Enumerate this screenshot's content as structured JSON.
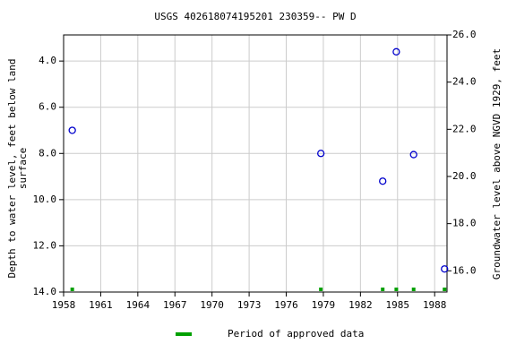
{
  "chart_data": {
    "type": "scatter",
    "title": "USGS 402618074195201 230359-- PW D",
    "ylabel": [
      "Depth to water level, feet below land",
      "surface"
    ],
    "y2label": "Groundwater level above NGVD 1929, feet",
    "xlim": [
      1958,
      1989
    ],
    "xticks": [
      1958,
      1961,
      1964,
      1967,
      1970,
      1973,
      1976,
      1979,
      1982,
      1985,
      1988
    ],
    "ylim": [
      14.0,
      2.87
    ],
    "yticks": [
      {
        "value": 4,
        "label": "4.0"
      },
      {
        "value": 6,
        "label": "6.0"
      },
      {
        "value": 8,
        "label": "8.0"
      },
      {
        "value": 10,
        "label": "10.0"
      },
      {
        "value": 12,
        "label": "12.0"
      },
      {
        "value": 14,
        "label": "14.0"
      }
    ],
    "y2lim": [
      15.1,
      26.0
    ],
    "y2ticks": [
      {
        "value": 16,
        "label": "16.0"
      },
      {
        "value": 18,
        "label": "18.0"
      },
      {
        "value": 20,
        "label": "20.0"
      },
      {
        "value": 22,
        "label": "22.0"
      },
      {
        "value": 24,
        "label": "24.0"
      },
      {
        "value": 26,
        "label": "26.0"
      }
    ],
    "grid": true,
    "series": [
      {
        "color": "#0000cc",
        "x": [
          1958.7,
          1978.8,
          1983.8,
          1984.9,
          1986.3,
          1988.8
        ],
        "values": [
          7.0,
          8.0,
          9.2,
          3.6,
          8.05,
          13.0
        ]
      }
    ],
    "approved": {
      "name": "Period of approved data",
      "color": "#00a000",
      "x": [
        1958.7,
        1978.8,
        1983.8,
        1984.9,
        1986.3,
        1988.8
      ]
    }
  }
}
